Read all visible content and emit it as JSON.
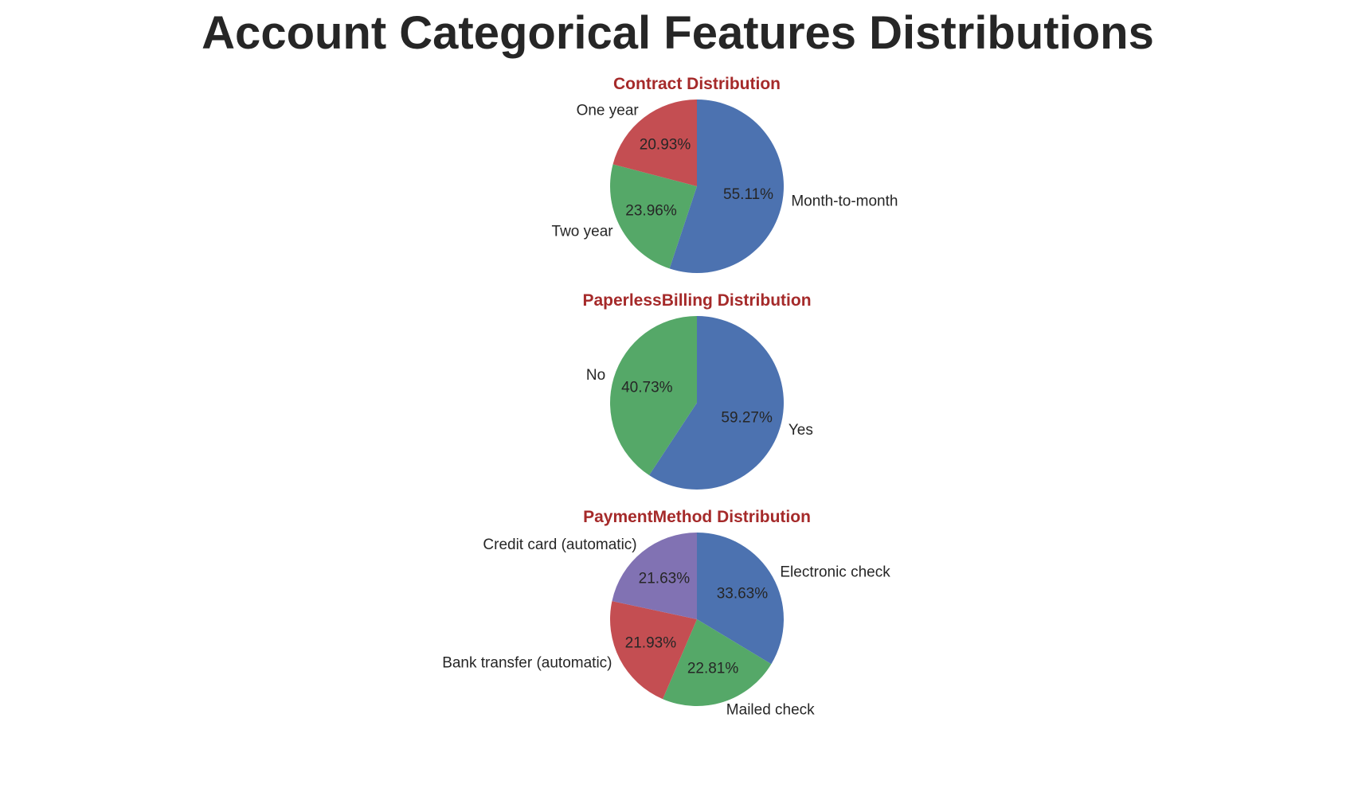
{
  "title": "Account Categorical Features Distributions",
  "colors": {
    "blue": "#4c72b0",
    "green": "#55a868",
    "red": "#c44e52",
    "purple": "#8172b3",
    "title_text": "#262626",
    "subtitle_text": "#a52a2a"
  },
  "chart_data": [
    {
      "type": "pie",
      "title": "Contract Distribution",
      "slices": [
        {
          "label": "Month-to-month",
          "value": 55.11,
          "pct_label": "55.11%",
          "color": "#4c72b0"
        },
        {
          "label": "Two year",
          "value": 23.96,
          "pct_label": "23.96%",
          "color": "#55a868"
        },
        {
          "label": "One year",
          "value": 20.93,
          "pct_label": "20.93%",
          "color": "#c44e52"
        }
      ],
      "start_angle": 90,
      "direction": "clockwise"
    },
    {
      "type": "pie",
      "title": "PaperlessBilling Distribution",
      "slices": [
        {
          "label": "Yes",
          "value": 59.27,
          "pct_label": "59.27%",
          "color": "#4c72b0"
        },
        {
          "label": "No",
          "value": 40.73,
          "pct_label": "40.73%",
          "color": "#55a868"
        }
      ],
      "start_angle": 90,
      "direction": "clockwise"
    },
    {
      "type": "pie",
      "title": "PaymentMethod Distribution",
      "slices": [
        {
          "label": "Electronic check",
          "value": 33.63,
          "pct_label": "33.63%",
          "color": "#4c72b0"
        },
        {
          "label": "Mailed check",
          "value": 22.81,
          "pct_label": "22.81%",
          "color": "#55a868"
        },
        {
          "label": "Bank transfer (automatic)",
          "value": 21.93,
          "pct_label": "21.93%",
          "color": "#c44e52"
        },
        {
          "label": "Credit card (automatic)",
          "value": 21.63,
          "pct_label": "21.63%",
          "color": "#8172b3"
        }
      ],
      "start_angle": 90,
      "direction": "clockwise"
    }
  ]
}
